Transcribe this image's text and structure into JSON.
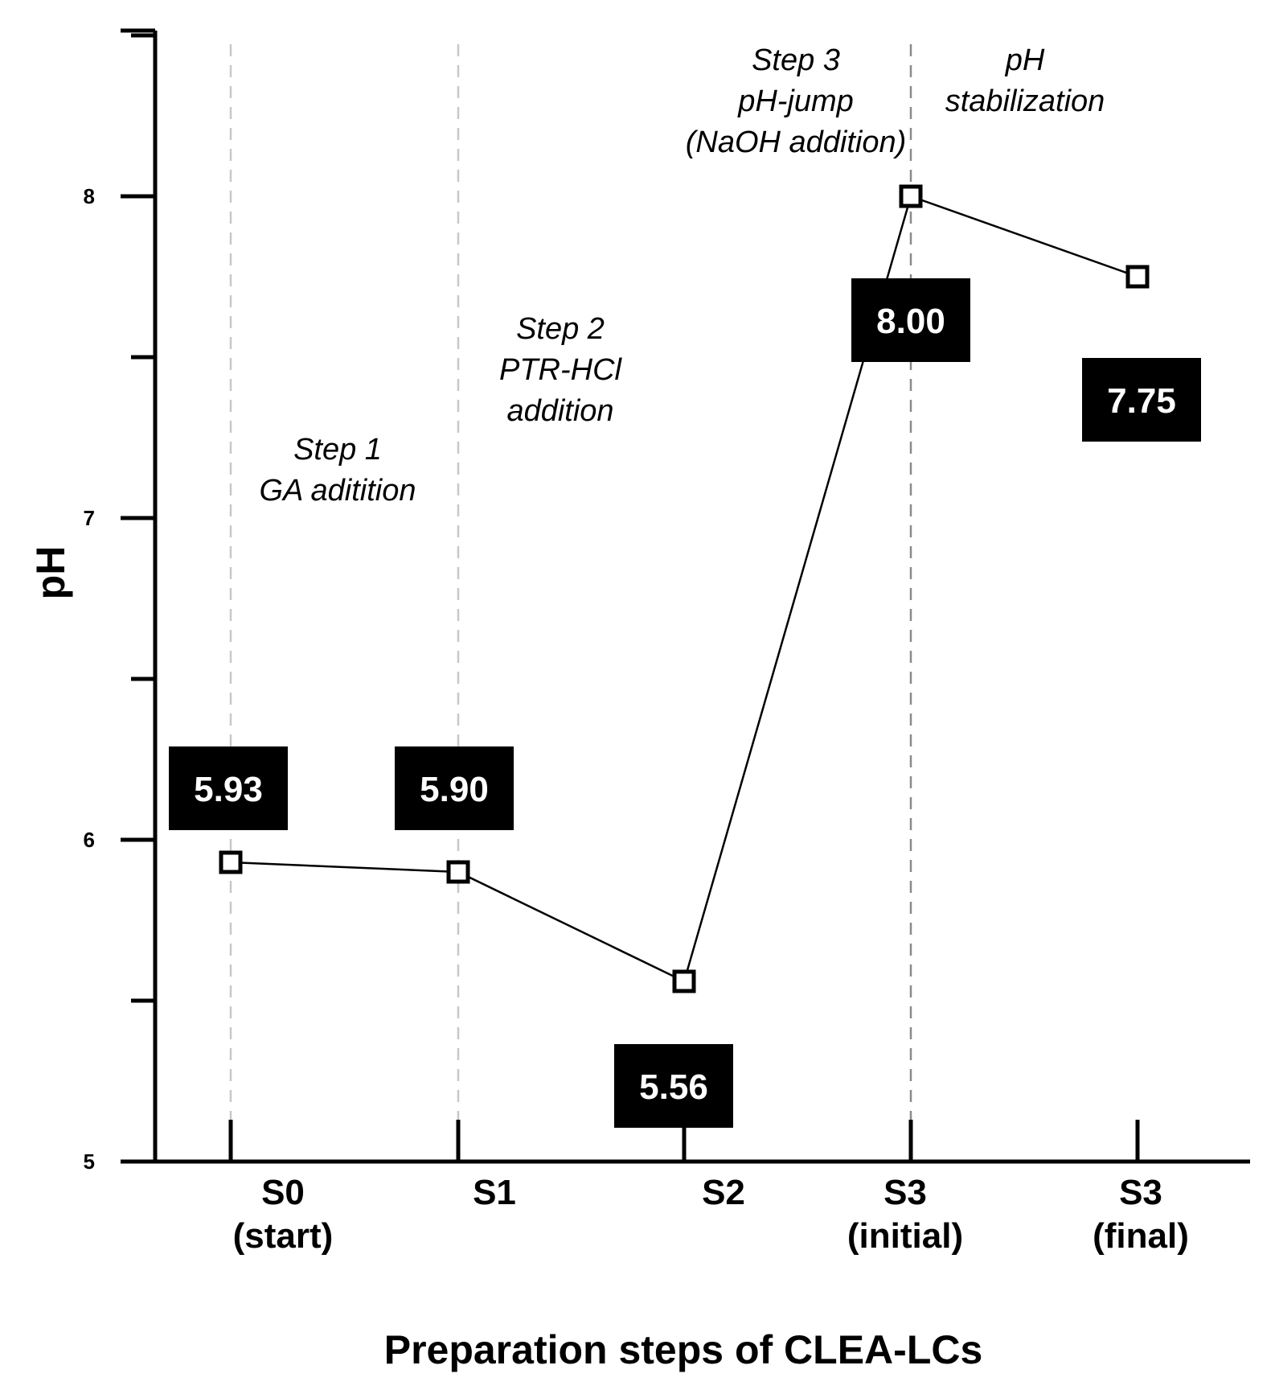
{
  "chart_data": {
    "type": "line",
    "title": "",
    "xlabel": "Preparation steps of CLEA-LCs",
    "ylabel": "pH",
    "ylim": [
      5,
      8.5
    ],
    "yticks": [
      5,
      6,
      7,
      8
    ],
    "grid": false,
    "categories": [
      {
        "line1": "S0",
        "line2": "(start)"
      },
      {
        "line1": "S1",
        "line2": ""
      },
      {
        "line1": "S2",
        "line2": ""
      },
      {
        "line1": "S3",
        "line2": "(initial)"
      },
      {
        "line1": "S3",
        "line2": "(final)"
      }
    ],
    "series": [
      {
        "name": "pH",
        "values": [
          5.93,
          5.9,
          5.56,
          8.0,
          7.75
        ]
      }
    ],
    "value_labels": [
      "5.93",
      "5.90",
      "5.56",
      "8.00",
      "7.75"
    ],
    "annotations": [
      {
        "lines": [
          "Step 1",
          "GA aditition"
        ]
      },
      {
        "lines": [
          "Step 2",
          "PTR-HCl",
          "addition"
        ]
      },
      {
        "lines": [
          "Step 3",
          "pH-jump",
          "(NaOH addition)"
        ]
      },
      {
        "lines": [
          "pH",
          "stabilization"
        ]
      }
    ]
  }
}
